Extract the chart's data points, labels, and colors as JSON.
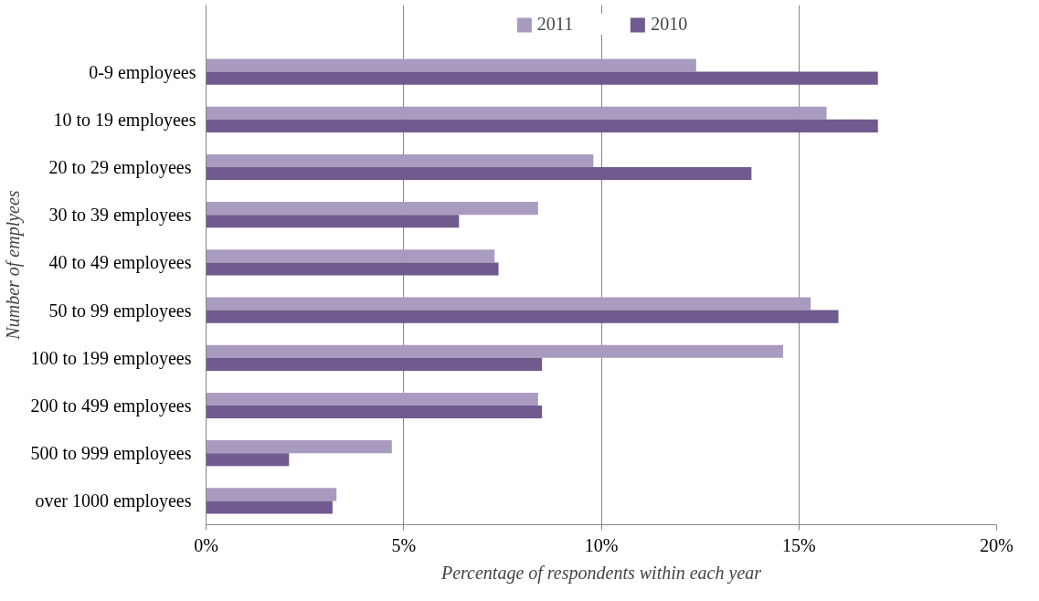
{
  "chart_data": {
    "type": "bar",
    "orientation": "horizontal",
    "xlabel": "Percentage of respondents within each year",
    "ylabel": "Number of emplyees",
    "categories": [
      "0-9 employees",
      "10 to 19 employees",
      "20 to 29  employees",
      "30 to 39  employees",
      "40 to 49  employees",
      "50 to 99  employees",
      "100 to 199  employees",
      "200 to 499  employees",
      "500 to 999  employees",
      "over 1000  employees"
    ],
    "series": [
      {
        "name": "2011",
        "color": "#a89bbf",
        "values": [
          12.4,
          15.7,
          9.8,
          8.4,
          7.3,
          15.3,
          14.6,
          8.4,
          4.7,
          3.3
        ]
      },
      {
        "name": "2010",
        "color": "#715a8f",
        "values": [
          17.0,
          17.0,
          13.8,
          6.4,
          7.4,
          16.0,
          8.5,
          8.5,
          2.1,
          3.2
        ]
      }
    ],
    "xlim": [
      0,
      20
    ],
    "xticks": [
      {
        "value": 0,
        "label": "0%"
      },
      {
        "value": 5,
        "label": "5%"
      },
      {
        "value": 10,
        "label": "10%"
      },
      {
        "value": 15,
        "label": "15%"
      },
      {
        "value": 20,
        "label": "20%"
      }
    ],
    "grid": "x",
    "legend": "top"
  }
}
